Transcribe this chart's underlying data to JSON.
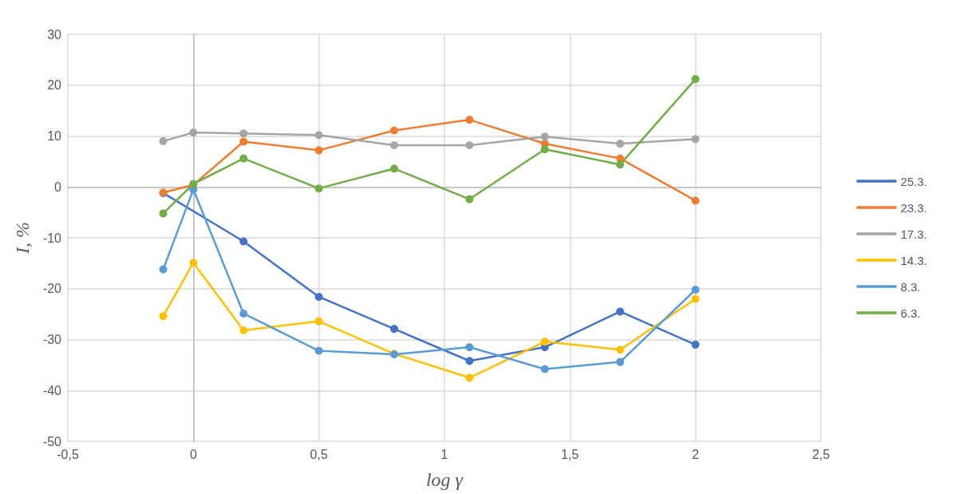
{
  "chart_data": {
    "type": "line",
    "xlabel": "log γ",
    "ylabel": "I, %",
    "x": [
      -0.12,
      0,
      0.2,
      0.5,
      0.8,
      1.1,
      1.4,
      1.7,
      2
    ],
    "series": [
      {
        "name": "25.3.",
        "color": "#4472c4",
        "values": [
          -1.2,
          null,
          -10.7,
          -21.6,
          -27.9,
          -34.2,
          -31.5,
          -24.5,
          -31
        ]
      },
      {
        "name": "23.3.",
        "color": "#ed7d31",
        "values": [
          -1.1,
          0.4,
          8.9,
          7.2,
          11.1,
          13.2,
          8.5,
          5.6,
          -2.7
        ]
      },
      {
        "name": "17.3.",
        "color": "#a5a5a5",
        "values": [
          9,
          10.7,
          10.5,
          10.2,
          8.2,
          8.2,
          9.9,
          8.5,
          9.4
        ]
      },
      {
        "name": "14.3.",
        "color": "#ffc000",
        "values": [
          -25.4,
          -14.9,
          -28.2,
          -26.4,
          -32.8,
          -37.5,
          -30.4,
          -32,
          -22
        ]
      },
      {
        "name": "8.3.",
        "color": "#5b9bd5",
        "values": [
          -16.2,
          -0.5,
          -24.9,
          -32.2,
          -32.9,
          -31.5,
          -35.8,
          -34.4,
          -20.2
        ]
      },
      {
        "name": "6.3.",
        "color": "#70ad47",
        "values": [
          -5.2,
          0.6,
          5.6,
          -0.3,
          3.6,
          -2.4,
          7.4,
          4.4,
          21.2
        ]
      }
    ],
    "xlim": [
      -0.5,
      2.5
    ],
    "xticks": [
      {
        "value": -0.5,
        "label": "-0,5"
      },
      0,
      {
        "value": 0.5,
        "label": "0,5"
      },
      1,
      {
        "value": 1.5,
        "label": "1,5"
      },
      2,
      {
        "value": 2.5,
        "label": "2,5"
      }
    ],
    "ylim": [
      -50,
      30
    ],
    "yticks": [
      -50,
      -40,
      -30,
      -20,
      -10,
      0,
      10,
      20,
      30
    ],
    "grid": true,
    "legend": "right",
    "marker": "circle",
    "line_style": "solid"
  }
}
